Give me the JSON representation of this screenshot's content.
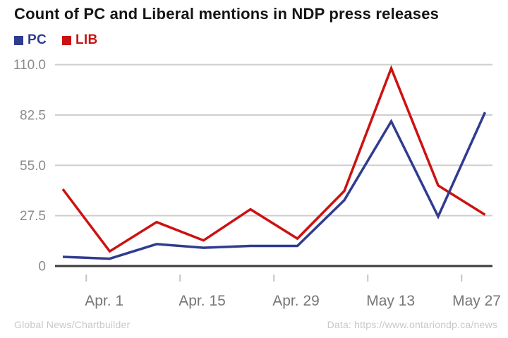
{
  "title": "Count of PC and Liberal mentions in NDP press releases",
  "legend": [
    {
      "label": "PC",
      "color": "#2f3c8f"
    },
    {
      "label": "LIB",
      "color": "#cc1111"
    }
  ],
  "footer": {
    "left": "Global News/Chartbuilder",
    "right": "Data: https://www.ontariondp.ca/news"
  },
  "colors": {
    "pc_line": "#2f3c8f",
    "lib_line": "#cc1111",
    "gridline": "#cfcfcf",
    "zero_line": "#3c3c3c",
    "tick_mark": "#c4c4c4",
    "y_label": "#8b8b8b",
    "x_label": "#767676",
    "title_text": "#151515",
    "footer_text": "#c8c8c8",
    "background": "#ffffff"
  },
  "chart_data": {
    "type": "line",
    "title": "Count of PC and Liberal mentions in NDP press releases",
    "xlabel": "",
    "ylabel": "",
    "x": [
      0,
      1,
      2,
      3,
      4,
      5,
      6,
      7,
      8,
      9
    ],
    "x_unit": "weeks",
    "series": [
      {
        "name": "PC",
        "color": "#2f3c8f",
        "values": [
          5,
          4,
          12,
          10,
          11,
          11,
          36,
          79,
          27,
          84
        ]
      },
      {
        "name": "LIB",
        "color": "#cc1111",
        "values": [
          42,
          8,
          24,
          14,
          31,
          15,
          41,
          108,
          44,
          28
        ]
      }
    ],
    "x_tick_positions": [
      0.5,
      2.5,
      4.5,
      6.5,
      8.5
    ],
    "x_tick_labels": [
      "Apr. 1",
      "Apr. 15",
      "Apr. 29",
      "May 13",
      "May 27"
    ],
    "y_ticks": [
      {
        "value": 0,
        "label": "0"
      },
      {
        "value": 27.5,
        "label": "27.5"
      },
      {
        "value": 55,
        "label": "55.0"
      },
      {
        "value": 82.5,
        "label": "82.5"
      },
      {
        "value": 110,
        "label": "110.0"
      }
    ],
    "ylim": [
      0,
      110
    ],
    "grid": true,
    "legend_position": "top-left"
  }
}
